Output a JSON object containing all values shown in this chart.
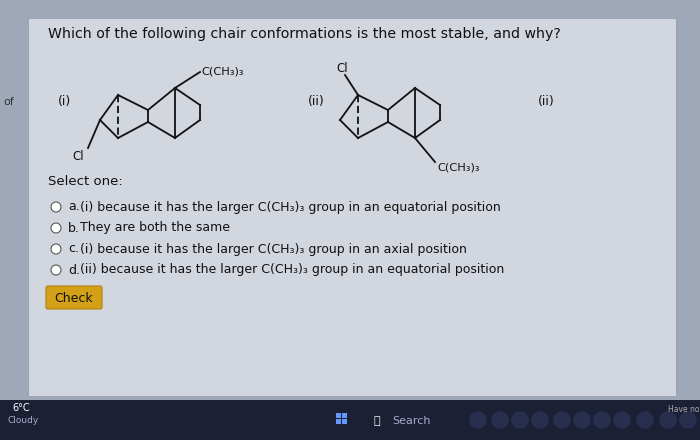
{
  "title": "Which of the following chair conformations is the most stable, and why?",
  "options_a": "(i) because it has the larger C(CH₃)₃ group in an equatorial position",
  "options_b": "They are both the same",
  "options_c": "(i) because it has the larger C(CH₃)₃ group in an axial position",
  "options_d": "(ii) because it has the larger C(CH₃)₃ group in an equatorial position",
  "select_label": "Select one:",
  "check_button": "Check",
  "label_i": "(i)",
  "label_ii": "(ii)",
  "label_cl_i": "Cl",
  "label_cch3_i": "C(CH₃)₃",
  "label_cl_ii": "Cl",
  "label_cch3_ii": "C(CH₃)₃",
  "bg_outer": "#9ea8b8",
  "bg_inner": "#d2d6de",
  "taskbar_bg": "#1c2035",
  "btn_color": "#d4a017",
  "font_main": "#111111",
  "search_text": "Search"
}
